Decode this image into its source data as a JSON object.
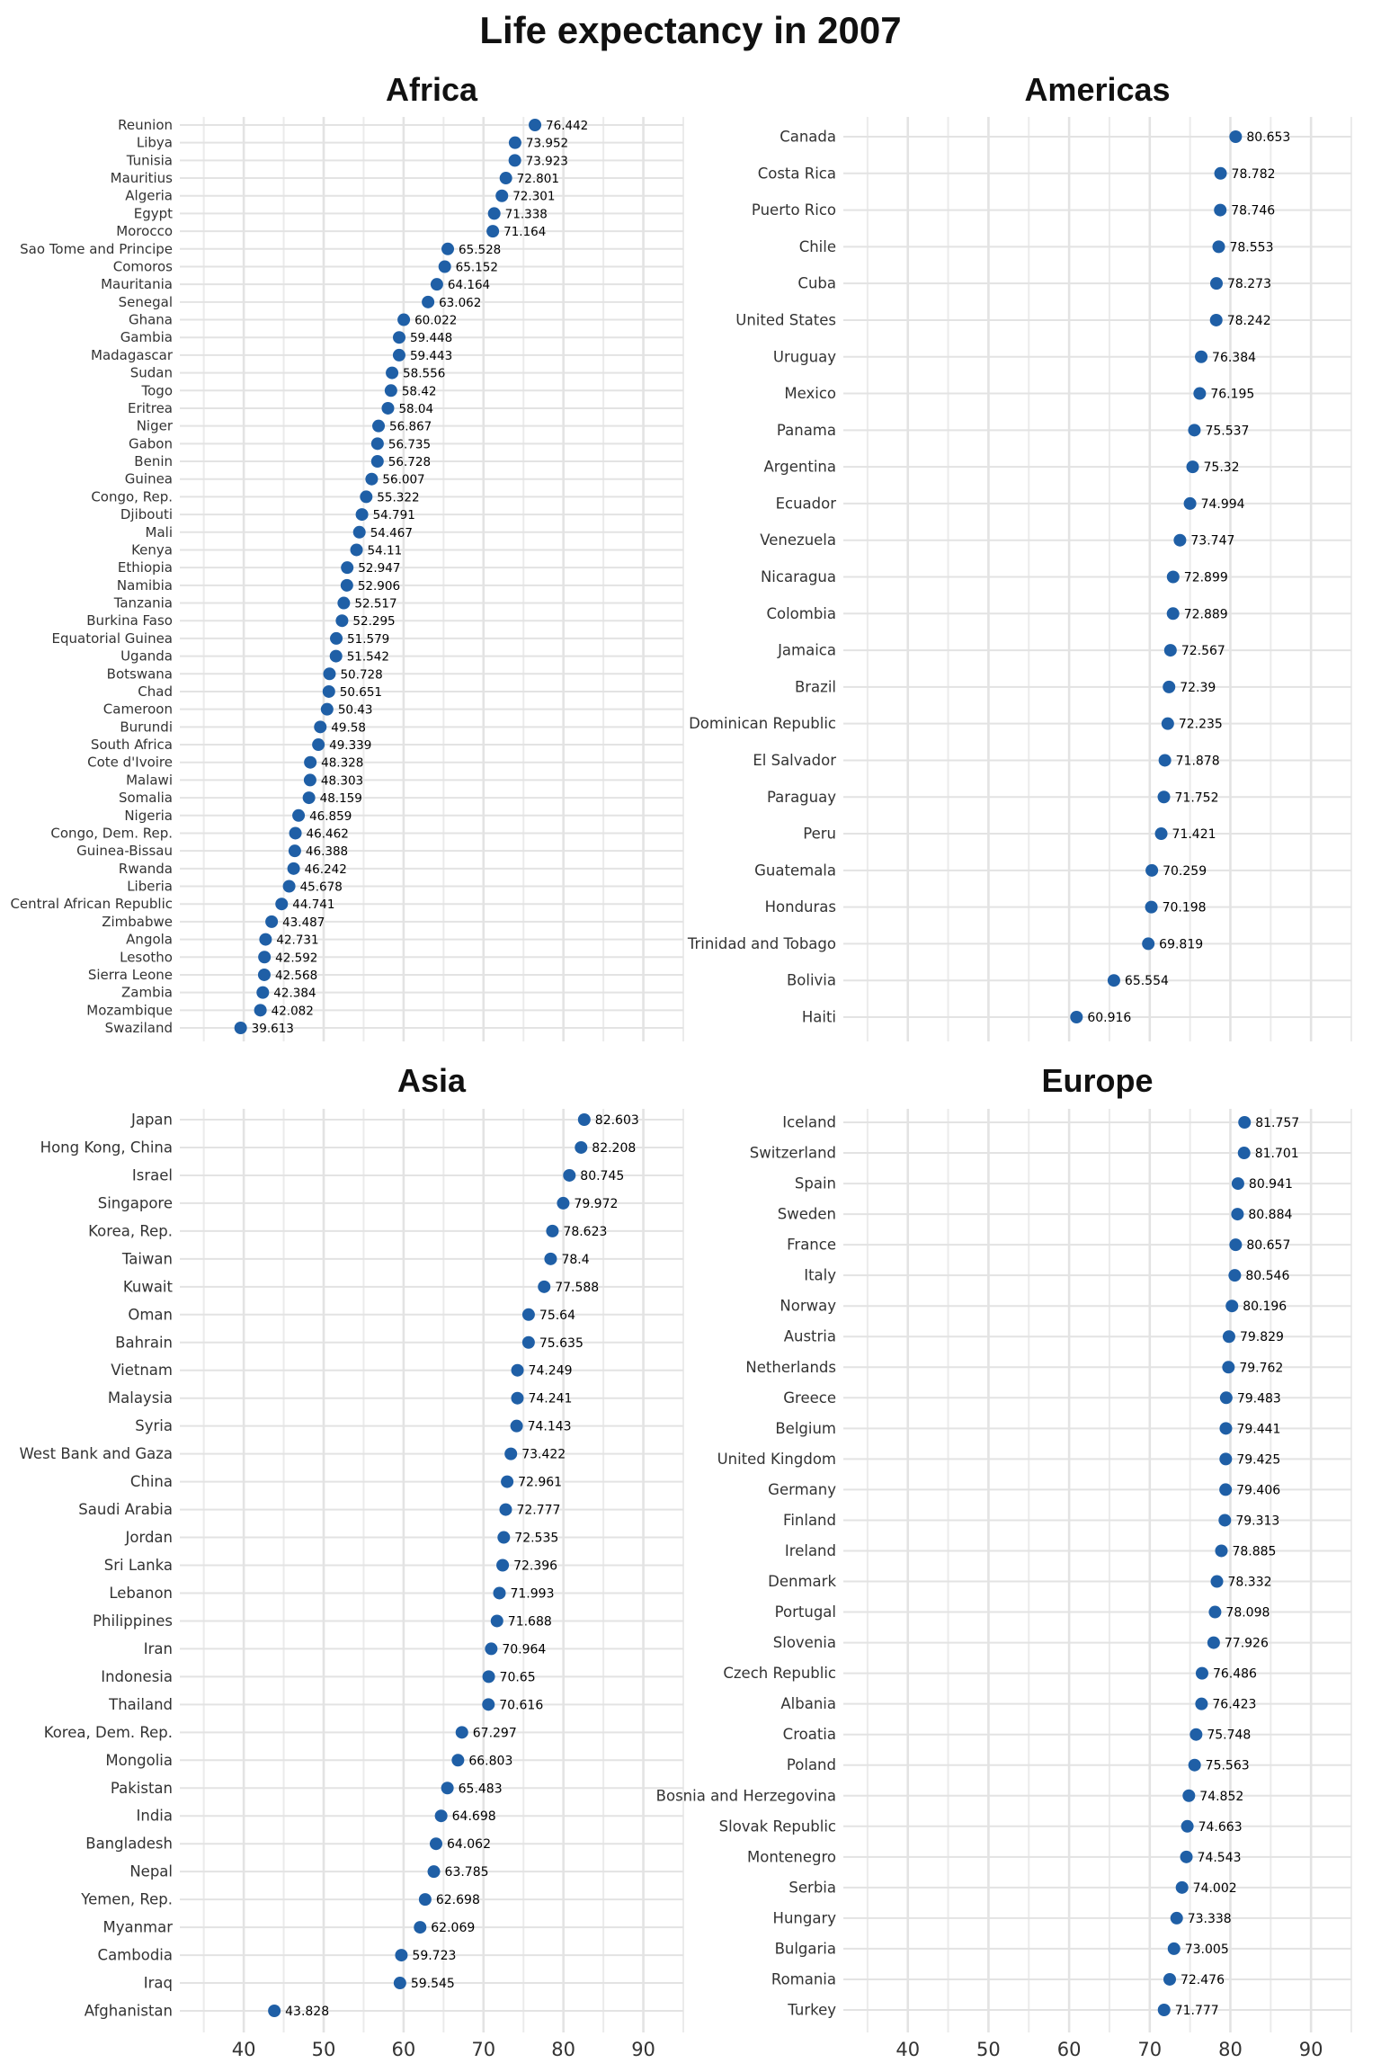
{
  "title": "Life expectancy in 2007",
  "colors": {
    "point": "#1f5fa6",
    "grid_minor": "#ebebeb",
    "grid_major": "#e3e3e3"
  },
  "chart_data": [
    {
      "type": "scatter",
      "title": "Africa",
      "xlabel": "",
      "ylabel": "",
      "xlim": [
        32,
        95
      ],
      "xticks": [
        40,
        50,
        60,
        70,
        80,
        90
      ],
      "grid": true,
      "categories": [
        "Reunion",
        "Libya",
        "Tunisia",
        "Mauritius",
        "Algeria",
        "Egypt",
        "Morocco",
        "Sao Tome and Principe",
        "Comoros",
        "Mauritania",
        "Senegal",
        "Ghana",
        "Gambia",
        "Madagascar",
        "Sudan",
        "Togo",
        "Eritrea",
        "Niger",
        "Gabon",
        "Benin",
        "Guinea",
        "Congo, Rep.",
        "Djibouti",
        "Mali",
        "Kenya",
        "Ethiopia",
        "Namibia",
        "Tanzania",
        "Burkina Faso",
        "Equatorial Guinea",
        "Uganda",
        "Botswana",
        "Chad",
        "Cameroon",
        "Burundi",
        "South Africa",
        "Cote d'Ivoire",
        "Malawi",
        "Somalia",
        "Nigeria",
        "Congo, Dem. Rep.",
        "Guinea-Bissau",
        "Rwanda",
        "Liberia",
        "Central African Republic",
        "Zimbabwe",
        "Angola",
        "Lesotho",
        "Sierra Leone",
        "Zambia",
        "Mozambique",
        "Swaziland"
      ],
      "values": [
        76.442,
        73.952,
        73.923,
        72.801,
        72.301,
        71.338,
        71.164,
        65.528,
        65.152,
        64.164,
        63.062,
        60.022,
        59.448,
        59.443,
        58.556,
        58.42,
        58.04,
        56.867,
        56.735,
        56.728,
        56.007,
        55.322,
        54.791,
        54.467,
        54.11,
        52.947,
        52.906,
        52.517,
        52.295,
        51.579,
        51.542,
        50.728,
        50.651,
        50.43,
        49.58,
        49.339,
        48.328,
        48.303,
        48.159,
        46.859,
        46.462,
        46.388,
        46.242,
        45.678,
        44.741,
        43.487,
        42.731,
        42.592,
        42.568,
        42.384,
        42.082,
        39.613
      ],
      "labels": [
        "76.442",
        "73.952",
        "73.923",
        "72.801",
        "72.301",
        "71.338",
        "71.164",
        "65.528",
        "65.152",
        "64.164",
        "63.062",
        "60.022",
        "59.448",
        "59.443",
        "58.556",
        "58.42",
        "58.04",
        "56.867",
        "56.735",
        "56.728",
        "56.007",
        "55.322",
        "54.791",
        "54.467",
        "54.11",
        "52.947",
        "52.906",
        "52.517",
        "52.295",
        "51.579",
        "51.542",
        "50.728",
        "50.651",
        "50.43",
        "49.58",
        "49.339",
        "48.328",
        "48.303",
        "48.159",
        "46.859",
        "46.462",
        "46.388",
        "46.242",
        "45.678",
        "44.741",
        "43.487",
        "42.731",
        "42.592",
        "42.568",
        "42.384",
        "42.082",
        "39.613"
      ]
    },
    {
      "type": "scatter",
      "title": "Americas",
      "xlabel": "",
      "ylabel": "",
      "xlim": [
        32,
        95
      ],
      "xticks": [
        40,
        50,
        60,
        70,
        80,
        90
      ],
      "grid": true,
      "categories": [
        "Canada",
        "Costa Rica",
        "Puerto Rico",
        "Chile",
        "Cuba",
        "United States",
        "Uruguay",
        "Mexico",
        "Panama",
        "Argentina",
        "Ecuador",
        "Venezuela",
        "Nicaragua",
        "Colombia",
        "Jamaica",
        "Brazil",
        "Dominican Republic",
        "El Salvador",
        "Paraguay",
        "Peru",
        "Guatemala",
        "Honduras",
        "Trinidad and Tobago",
        "Bolivia",
        "Haiti"
      ],
      "values": [
        80.653,
        78.782,
        78.746,
        78.553,
        78.273,
        78.242,
        76.384,
        76.195,
        75.537,
        75.32,
        74.994,
        73.747,
        72.899,
        72.889,
        72.567,
        72.39,
        72.235,
        71.878,
        71.752,
        71.421,
        70.259,
        70.198,
        69.819,
        65.554,
        60.916
      ],
      "labels": [
        "80.653",
        "78.782",
        "78.746",
        "78.553",
        "78.273",
        "78.242",
        "76.384",
        "76.195",
        "75.537",
        "75.32",
        "74.994",
        "73.747",
        "72.899",
        "72.889",
        "72.567",
        "72.39",
        "72.235",
        "71.878",
        "71.752",
        "71.421",
        "70.259",
        "70.198",
        "69.819",
        "65.554",
        "60.916"
      ]
    },
    {
      "type": "scatter",
      "title": "Asia",
      "xlabel": "",
      "ylabel": "",
      "xlim": [
        32,
        95
      ],
      "xticks": [
        40,
        50,
        60,
        70,
        80,
        90
      ],
      "grid": true,
      "categories": [
        "Japan",
        "Hong Kong, China",
        "Israel",
        "Singapore",
        "Korea, Rep.",
        "Taiwan",
        "Kuwait",
        "Oman",
        "Bahrain",
        "Vietnam",
        "Malaysia",
        "Syria",
        "West Bank and Gaza",
        "China",
        "Saudi Arabia",
        "Jordan",
        "Sri Lanka",
        "Lebanon",
        "Philippines",
        "Iran",
        "Indonesia",
        "Thailand",
        "Korea, Dem. Rep.",
        "Mongolia",
        "Pakistan",
        "India",
        "Bangladesh",
        "Nepal",
        "Yemen, Rep.",
        "Myanmar",
        "Cambodia",
        "Iraq",
        "Afghanistan"
      ],
      "values": [
        82.603,
        82.208,
        80.745,
        79.972,
        78.623,
        78.4,
        77.588,
        75.64,
        75.635,
        74.249,
        74.241,
        74.143,
        73.422,
        72.961,
        72.777,
        72.535,
        72.396,
        71.993,
        71.688,
        70.964,
        70.65,
        70.616,
        67.297,
        66.803,
        65.483,
        64.698,
        64.062,
        63.785,
        62.698,
        62.069,
        59.723,
        59.545,
        43.828
      ],
      "labels": [
        "82.603",
        "82.208",
        "80.745",
        "79.972",
        "78.623",
        "78.4",
        "77.588",
        "75.64",
        "75.635",
        "74.249",
        "74.241",
        "74.143",
        "73.422",
        "72.961",
        "72.777",
        "72.535",
        "72.396",
        "71.993",
        "71.688",
        "70.964",
        "70.65",
        "70.616",
        "67.297",
        "66.803",
        "65.483",
        "64.698",
        "64.062",
        "63.785",
        "62.698",
        "62.069",
        "59.723",
        "59.545",
        "43.828"
      ]
    },
    {
      "type": "scatter",
      "title": "Europe",
      "xlabel": "",
      "ylabel": "",
      "xlim": [
        32,
        95
      ],
      "xticks": [
        40,
        50,
        60,
        70,
        80,
        90
      ],
      "grid": true,
      "categories": [
        "Iceland",
        "Switzerland",
        "Spain",
        "Sweden",
        "France",
        "Italy",
        "Norway",
        "Austria",
        "Netherlands",
        "Greece",
        "Belgium",
        "United Kingdom",
        "Germany",
        "Finland",
        "Ireland",
        "Denmark",
        "Portugal",
        "Slovenia",
        "Czech Republic",
        "Albania",
        "Croatia",
        "Poland",
        "Bosnia and Herzegovina",
        "Slovak Republic",
        "Montenegro",
        "Serbia",
        "Hungary",
        "Bulgaria",
        "Romania",
        "Turkey"
      ],
      "values": [
        81.757,
        81.701,
        80.941,
        80.884,
        80.657,
        80.546,
        80.196,
        79.829,
        79.762,
        79.483,
        79.441,
        79.425,
        79.406,
        79.313,
        78.885,
        78.332,
        78.098,
        77.926,
        76.486,
        76.423,
        75.748,
        75.563,
        74.852,
        74.663,
        74.543,
        74.002,
        73.338,
        73.005,
        72.476,
        71.777
      ],
      "labels": [
        "81.757",
        "81.701",
        "80.941",
        "80.884",
        "80.657",
        "80.546",
        "80.196",
        "79.829",
        "79.762",
        "79.483",
        "79.441",
        "79.425",
        "79.406",
        "79.313",
        "78.885",
        "78.332",
        "78.098",
        "77.926",
        "76.486",
        "76.423",
        "75.748",
        "75.563",
        "74.852",
        "74.663",
        "74.543",
        "74.002",
        "73.338",
        "73.005",
        "72.476",
        "71.777"
      ]
    }
  ]
}
